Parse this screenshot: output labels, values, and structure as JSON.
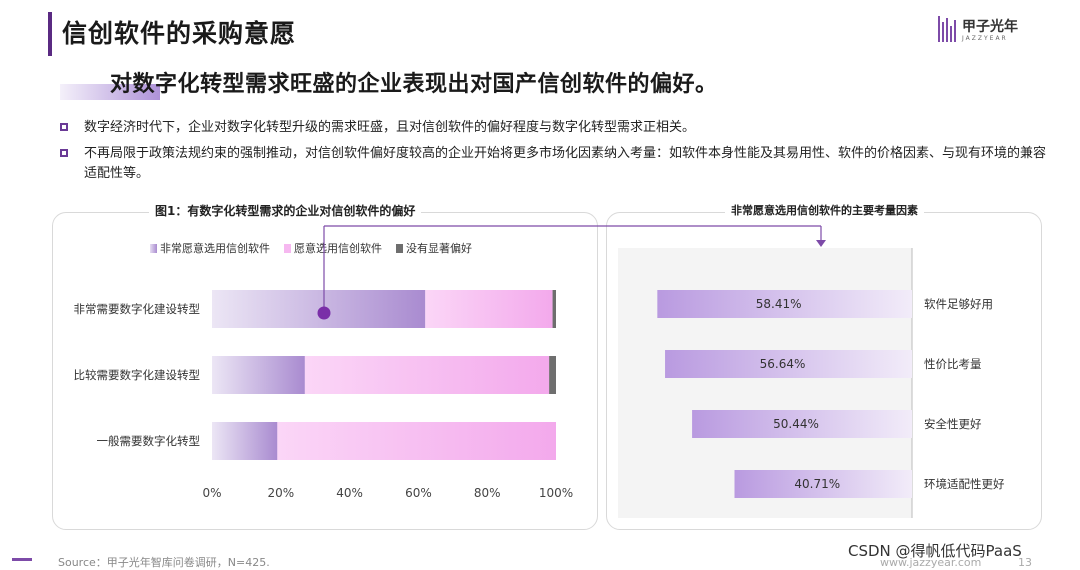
{
  "header": {
    "title": "信创软件的采购意愿",
    "logo_text": "甲子光年",
    "logo_sub": "JAZZYEAR"
  },
  "headline": "对数字化转型需求旺盛的企业表现出对国产信创软件的偏好。",
  "bullets": [
    "数字经济时代下，企业对数字化转型升级的需求旺盛，且对信创软件的偏好程度与数字化转型需求正相关。",
    "不再局限于政策法规约束的强制推动，对信创软件偏好度较高的企业开始将更多市场化因素纳入考量：如软件本身性能及其易用性、软件的价格因素、与现有环境的兼容适配性等。"
  ],
  "colors": {
    "accent": "#5a2a82",
    "very_willing": "#a98bd0",
    "willing": "#f6b8f0",
    "no_preference": "#6e6e6e",
    "factor_bar": "#b99ae0"
  },
  "chart_data": [
    {
      "type": "bar",
      "orientation": "horizontal",
      "stacked": true,
      "title": "图1：有数字化转型需求的企业对信创软件的偏好",
      "categories": [
        "非常需要数字化建设转型",
        "比较需要数字化建设转型",
        "一般需要数字化转型"
      ],
      "series": [
        {
          "name": "非常愿意选用信创软件",
          "values": [
            62,
            27,
            19
          ]
        },
        {
          "name": "愿意选用信创软件",
          "values": [
            37,
            71,
            81
          ]
        },
        {
          "name": "没有显著偏好",
          "values": [
            1,
            2,
            0
          ]
        }
      ],
      "xlim": [
        0,
        100
      ],
      "x_ticks": [
        "0%",
        "20%",
        "40%",
        "60%",
        "80%",
        "100%"
      ],
      "legend": "top"
    },
    {
      "type": "bar",
      "orientation": "horizontal",
      "title": "非常愿意选用信创软件的主要考量因素",
      "categories": [
        "软件足够好用",
        "性价比考量",
        "安全性更好",
        "环境适配性更好"
      ],
      "values": [
        58.41,
        56.64,
        50.44,
        40.71
      ],
      "value_labels": [
        "58.41%",
        "56.64%",
        "50.44%",
        "40.71%"
      ],
      "bar_alignment": "right"
    }
  ],
  "footer": {
    "source": "Source：甲子光年智库问卷调研，N=425.",
    "website": "www.jazzyear.com",
    "page": "13",
    "watermark": "CSDN @得帆低代码PaaS"
  }
}
